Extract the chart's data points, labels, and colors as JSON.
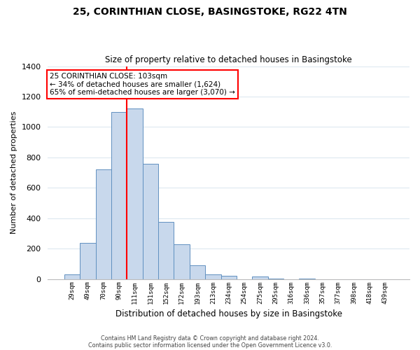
{
  "title": "25, CORINTHIAN CLOSE, BASINGSTOKE, RG22 4TN",
  "subtitle": "Size of property relative to detached houses in Basingstoke",
  "xlabel": "Distribution of detached houses by size in Basingstoke",
  "ylabel": "Number of detached properties",
  "bar_labels": [
    "29sqm",
    "49sqm",
    "70sqm",
    "90sqm",
    "111sqm",
    "131sqm",
    "152sqm",
    "172sqm",
    "193sqm",
    "213sqm",
    "234sqm",
    "254sqm",
    "275sqm",
    "295sqm",
    "316sqm",
    "336sqm",
    "357sqm",
    "377sqm",
    "398sqm",
    "418sqm",
    "439sqm"
  ],
  "bar_values": [
    30,
    240,
    720,
    1100,
    1120,
    760,
    375,
    230,
    90,
    30,
    20,
    0,
    15,
    5,
    0,
    3,
    0,
    0,
    0,
    0,
    0
  ],
  "bar_color": "#c8d8ec",
  "bar_edge_color": "#6090c0",
  "annotation_title": "25 CORINTHIAN CLOSE: 103sqm",
  "annotation_line1": "← 34% of detached houses are smaller (1,624)",
  "annotation_line2": "65% of semi-detached houses are larger (3,070) →",
  "footer1": "Contains HM Land Registry data © Crown copyright and database right 2024.",
  "footer2": "Contains public sector information licensed under the Open Government Licence v3.0.",
  "ylim": [
    0,
    1400
  ],
  "yticks": [
    0,
    200,
    400,
    600,
    800,
    1000,
    1200,
    1400
  ],
  "background_color": "#ffffff",
  "grid_color": "#dde8f0"
}
